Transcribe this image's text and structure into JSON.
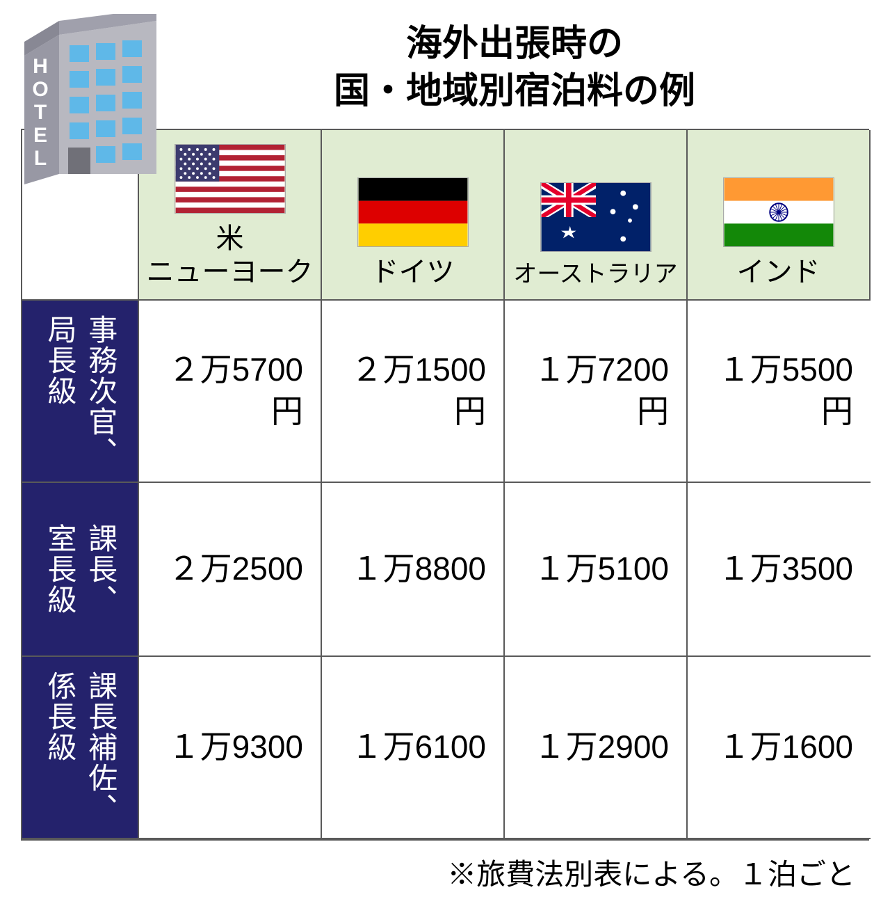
{
  "title": {
    "line1": "海外出張時の",
    "line2": "国・地域別宿泊料の例"
  },
  "hotel_label": "HOTEL",
  "columns": [
    {
      "country": "米",
      "city": "ニューヨーク",
      "flag_type": "usa"
    },
    {
      "country": "ドイツ",
      "city": "",
      "flag_type": "germany"
    },
    {
      "country": "オーストラリア",
      "city": "",
      "flag_type": "australia"
    },
    {
      "country": "インド",
      "city": "",
      "flag_type": "india"
    }
  ],
  "rows": [
    {
      "label": "事務次官、\n局長級",
      "values": [
        "２万5700\n円",
        "２万1500\n円",
        "１万7200\n円",
        "１万5500\n円"
      ]
    },
    {
      "label": "課長、\n室長級",
      "values": [
        "２万2500",
        "１万8800",
        "１万5100",
        "１万3500"
      ]
    },
    {
      "label": "課長補佐、\n係長級",
      "values": [
        "１万9300",
        "１万6100",
        "１万2900",
        "１万1600"
      ]
    }
  ],
  "note": "※旅費法別表による。１泊ごと",
  "colors": {
    "header_bg": "#e0ecd2",
    "row_header_bg": "#24226c",
    "row_header_text": "#ffffff",
    "border": "#595959",
    "cell_bg": "#ffffff",
    "text": "#000000"
  },
  "flags": {
    "usa": {
      "stripes": [
        "#b22234",
        "#ffffff"
      ],
      "canton": "#3c3b6e",
      "star": "#ffffff"
    },
    "germany": {
      "bands": [
        "#000000",
        "#dd0000",
        "#ffce00"
      ]
    },
    "australia": {
      "bg": "#012169",
      "cross": "#ffffff",
      "cross_red": "#e4002b",
      "star": "#ffffff"
    },
    "india": {
      "bands": [
        "#ff9933",
        "#ffffff",
        "#138808"
      ],
      "chakra": "#000080"
    }
  },
  "building": {
    "wall": "#b8b8c0",
    "wall_light": "#d0d0d8",
    "window": "#5fb8e8",
    "text": "#ffffff"
  }
}
